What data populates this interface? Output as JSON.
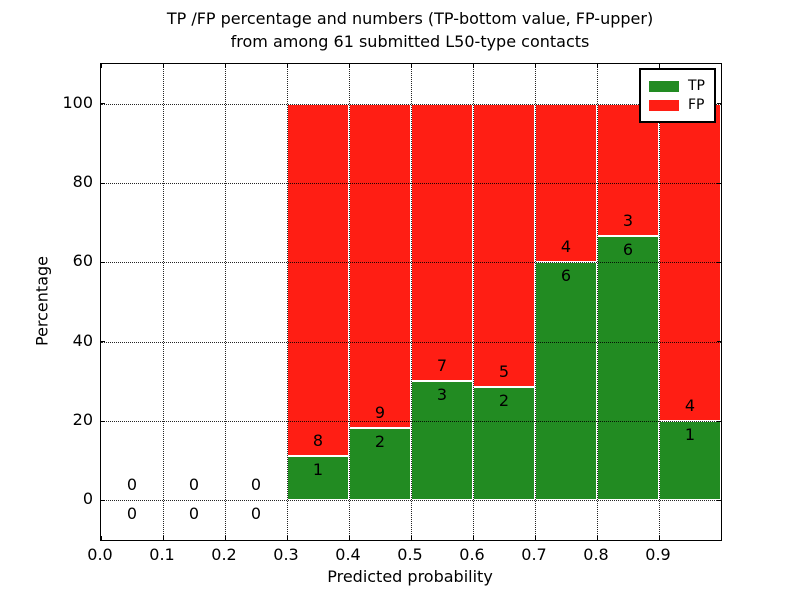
{
  "chart_data": {
    "type": "bar",
    "stacked": true,
    "title_lines": [
      "TP /FP percentage and numbers (TP-bottom value, FP-upper)",
      "from among 61 submitted L50-type contacts"
    ],
    "xlabel": "Predicted probability",
    "ylabel": "Percentage",
    "xlim": [
      0.0,
      1.0
    ],
    "ylim": [
      -10,
      110
    ],
    "x_ticks": [
      0.0,
      0.1,
      0.2,
      0.3,
      0.4,
      0.5,
      0.6,
      0.7,
      0.8,
      0.9
    ],
    "x_tick_labels": [
      "0.0",
      "0.1",
      "0.2",
      "0.3",
      "0.4",
      "0.5",
      "0.6",
      "0.7",
      "0.8",
      "0.9"
    ],
    "y_ticks": [
      0,
      20,
      40,
      60,
      80,
      100
    ],
    "y_tick_labels": [
      "0",
      "20",
      "40",
      "60",
      "80",
      "100"
    ],
    "grid": true,
    "legend_position": "upper right",
    "series": [
      {
        "name": "TP",
        "color": "#228b22"
      },
      {
        "name": "FP",
        "color": "#ff1e14"
      }
    ],
    "bins": [
      {
        "range": [
          0.0,
          0.1
        ],
        "tp": 0,
        "fp": 0,
        "tp_pct": 0
      },
      {
        "range": [
          0.1,
          0.2
        ],
        "tp": 0,
        "fp": 0,
        "tp_pct": 0
      },
      {
        "range": [
          0.2,
          0.3
        ],
        "tp": 0,
        "fp": 0,
        "tp_pct": 0
      },
      {
        "range": [
          0.3,
          0.4
        ],
        "tp": 1,
        "fp": 8,
        "tp_pct": 11.11
      },
      {
        "range": [
          0.4,
          0.5
        ],
        "tp": 2,
        "fp": 9,
        "tp_pct": 18.18
      },
      {
        "range": [
          0.5,
          0.6
        ],
        "tp": 3,
        "fp": 7,
        "tp_pct": 30.0
      },
      {
        "range": [
          0.6,
          0.7
        ],
        "tp": 2,
        "fp": 5,
        "tp_pct": 28.57
      },
      {
        "range": [
          0.7,
          0.8
        ],
        "tp": 6,
        "fp": 4,
        "tp_pct": 60.0
      },
      {
        "range": [
          0.8,
          0.9
        ],
        "tp": 6,
        "fp": 3,
        "tp_pct": 66.67
      },
      {
        "range": [
          0.9,
          1.0
        ],
        "tp": 1,
        "fp": 4,
        "tp_pct": 20.0
      }
    ],
    "total_contacts_in_title": "61"
  }
}
